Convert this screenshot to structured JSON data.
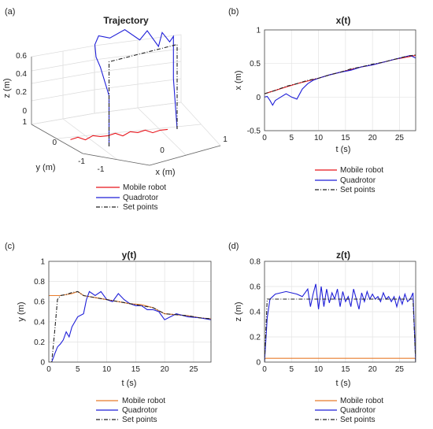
{
  "chart_data": [
    {
      "panel": "(a)",
      "type": "line",
      "title": "Trajectory",
      "xlabel": "x (m)",
      "ylabel": "y (m)",
      "zlabel": "z (m)",
      "xticks": [
        "-1",
        "0",
        "1"
      ],
      "yticks": [
        "-1",
        "0",
        "1"
      ],
      "zticks": [
        "0",
        "0.2",
        "0.4",
        "0.6"
      ],
      "xlim": [
        -1,
        1
      ],
      "ylim": [
        -1,
        1
      ],
      "zlim": [
        0,
        0.7
      ],
      "grid": true,
      "legend_position": "below",
      "series": [
        {
          "name": "Mobile robot",
          "color": "#e8141b",
          "x": [
            -0.7,
            -0.6,
            -0.5,
            -0.4,
            -0.3,
            -0.2,
            -0.1,
            0.0,
            0.1,
            0.2,
            0.3,
            0.4,
            0.5,
            0.6
          ],
          "y": [
            -0.1,
            -0.1,
            -0.1,
            -0.1,
            -0.1,
            -0.1,
            -0.1,
            -0.1,
            -0.1,
            -0.1,
            -0.1,
            -0.1,
            -0.1,
            -0.1
          ],
          "z": [
            0.04,
            0.05,
            0.03,
            0.05,
            0.04,
            0.04,
            0.05,
            0.03,
            0.05,
            0.04,
            0.05,
            0.03,
            0.04,
            0.04
          ]
        },
        {
          "name": "Quadrotor",
          "color": "#1f1fd8",
          "x": [
            -0.1,
            -0.1,
            -0.3,
            -0.4,
            -0.5,
            -0.45,
            -0.3,
            -0.1,
            0.1,
            0.2,
            0.35,
            0.4,
            0.5,
            0.55,
            0.55,
            0.6
          ],
          "y": [
            -0.3,
            -0.3,
            -0.1,
            0.0,
            0.2,
            0.2,
            0.2,
            0.2,
            0.2,
            0.2,
            0.2,
            0.2,
            0.2,
            0.2,
            0.2,
            0.2
          ],
          "z": [
            0.0,
            0.3,
            0.45,
            0.5,
            0.55,
            0.6,
            0.58,
            0.62,
            0.55,
            0.6,
            0.5,
            0.58,
            0.52,
            0.55,
            0.3,
            0.0
          ]
        },
        {
          "name": "Set points",
          "color": "#222222",
          "x": [
            -0.1,
            -0.1,
            0.6,
            0.6
          ],
          "y": [
            -0.3,
            -0.3,
            0.2,
            0.2
          ],
          "z": [
            0.0,
            0.5,
            0.5,
            0.0
          ]
        }
      ]
    },
    {
      "panel": "(b)",
      "type": "line",
      "title": "x(t)",
      "xlabel": "t (s)",
      "ylabel": "x (m)",
      "xlim": [
        0,
        28
      ],
      "ylim": [
        -0.5,
        1
      ],
      "xticks": [
        0,
        5,
        10,
        15,
        20,
        25
      ],
      "yticks": [
        -0.5,
        0,
        0.5,
        1
      ],
      "ytick_labels": [
        "-0.5",
        "0",
        "0.5",
        "1"
      ],
      "grid": true,
      "legend_position": "below",
      "series": [
        {
          "name": "Mobile robot",
          "color": "#e8141b",
          "x": [
            0,
            2,
            4,
            6,
            8,
            10,
            12,
            14,
            16,
            18,
            20,
            22,
            24,
            26,
            28
          ],
          "y": [
            0.05,
            0.1,
            0.15,
            0.2,
            0.24,
            0.28,
            0.33,
            0.37,
            0.41,
            0.45,
            0.48,
            0.52,
            0.56,
            0.59,
            0.62
          ]
        },
        {
          "name": "Quadrotor",
          "color": "#1f1fd8",
          "x": [
            0,
            0.5,
            1,
            1.5,
            2,
            3,
            4,
            5,
            6,
            7,
            8,
            9,
            10,
            12,
            14,
            16,
            18,
            20,
            22,
            24,
            26,
            27,
            28
          ],
          "y": [
            0.0,
            0.01,
            -0.05,
            -0.12,
            -0.05,
            0.0,
            0.05,
            0.0,
            -0.03,
            0.12,
            0.2,
            0.25,
            0.28,
            0.33,
            0.37,
            0.4,
            0.45,
            0.48,
            0.52,
            0.56,
            0.6,
            0.62,
            0.58
          ]
        },
        {
          "name": "Set points",
          "color": "#222222",
          "x": [
            0,
            2,
            4,
            6,
            8,
            10,
            12,
            14,
            16,
            18,
            20,
            22,
            24,
            26,
            28
          ],
          "y": [
            0.05,
            0.1,
            0.16,
            0.2,
            0.25,
            0.28,
            0.33,
            0.37,
            0.42,
            0.45,
            0.49,
            0.52,
            0.56,
            0.6,
            0.63
          ]
        }
      ]
    },
    {
      "panel": "(c)",
      "type": "line",
      "title": "y(t)",
      "xlabel": "t (s)",
      "ylabel": "y (m)",
      "xlim": [
        0,
        28
      ],
      "ylim": [
        0,
        1
      ],
      "xticks": [
        0,
        5,
        10,
        15,
        20,
        25
      ],
      "yticks": [
        0,
        0.2,
        0.4,
        0.6,
        0.8,
        1
      ],
      "ytick_labels": [
        "0",
        "0.2",
        "0.4",
        "0.6",
        "0.8",
        "1"
      ],
      "grid": true,
      "legend_position": "below",
      "series": [
        {
          "name": "Mobile robot",
          "color": "#e87b2b",
          "x": [
            0,
            2,
            4,
            5,
            6,
            8,
            10,
            12,
            14,
            16,
            18,
            20,
            22,
            24,
            26,
            28
          ],
          "y": [
            0.66,
            0.66,
            0.68,
            0.7,
            0.66,
            0.64,
            0.62,
            0.6,
            0.58,
            0.57,
            0.54,
            0.48,
            0.47,
            0.46,
            0.44,
            0.43
          ]
        },
        {
          "name": "Quadrotor",
          "color": "#1f1fd8",
          "x": [
            0,
            0.5,
            1,
            1.5,
            2,
            2.5,
            3,
            3.5,
            4,
            5,
            6,
            6.5,
            7,
            8,
            9,
            10,
            11,
            12,
            13,
            14,
            15,
            16,
            17,
            18,
            19,
            20,
            22,
            24,
            26,
            28
          ],
          "y": [
            0.0,
            0.0,
            0.08,
            0.15,
            0.18,
            0.22,
            0.3,
            0.25,
            0.35,
            0.45,
            0.48,
            0.62,
            0.7,
            0.66,
            0.7,
            0.62,
            0.6,
            0.68,
            0.62,
            0.58,
            0.56,
            0.56,
            0.52,
            0.52,
            0.5,
            0.42,
            0.48,
            0.45,
            0.44,
            0.42
          ]
        },
        {
          "name": "Set points",
          "color": "#222222",
          "x": [
            0,
            0.5,
            1,
            1.5,
            2,
            3,
            4,
            5,
            6,
            8,
            10,
            12,
            14,
            16,
            18,
            20,
            22,
            24,
            26,
            28
          ],
          "y": [
            0.0,
            0.0,
            0.3,
            0.62,
            0.66,
            0.67,
            0.69,
            0.7,
            0.66,
            0.64,
            0.62,
            0.6,
            0.58,
            0.56,
            0.54,
            0.48,
            0.47,
            0.46,
            0.44,
            0.43
          ]
        }
      ]
    },
    {
      "panel": "(d)",
      "type": "line",
      "title": "z(t)",
      "xlabel": "t (s)",
      "ylabel": "z (m)",
      "xlim": [
        0,
        28
      ],
      "ylim": [
        0,
        0.8
      ],
      "xticks": [
        0,
        5,
        10,
        15,
        20,
        25
      ],
      "yticks": [
        0,
        0.2,
        0.4,
        0.6,
        0.8
      ],
      "ytick_labels": [
        "0",
        "0.2",
        "0.4",
        "0.6",
        "0.8"
      ],
      "grid": true,
      "legend_position": "below",
      "series": [
        {
          "name": "Mobile robot",
          "color": "#e87b2b",
          "x": [
            0,
            0.5,
            28
          ],
          "y": [
            0.03,
            0.03,
            0.03
          ]
        },
        {
          "name": "Quadrotor",
          "color": "#1f1fd8",
          "x": [
            0,
            0.5,
            1,
            1.5,
            2,
            3,
            4,
            5,
            6,
            7,
            8,
            8.5,
            9,
            9.5,
            10,
            10.5,
            11,
            11.5,
            12,
            12.5,
            13,
            13.5,
            14,
            14.5,
            15,
            15.5,
            16,
            16.5,
            17,
            17.5,
            18,
            18.5,
            19,
            19.5,
            20,
            20.5,
            21,
            21.5,
            22,
            22.5,
            23,
            23.5,
            24,
            24.5,
            25,
            25.5,
            26,
            26.5,
            27,
            27.5,
            28
          ],
          "y": [
            0.0,
            0.35,
            0.5,
            0.52,
            0.54,
            0.55,
            0.56,
            0.55,
            0.54,
            0.52,
            0.58,
            0.44,
            0.54,
            0.62,
            0.42,
            0.6,
            0.44,
            0.58,
            0.47,
            0.55,
            0.5,
            0.58,
            0.44,
            0.56,
            0.48,
            0.52,
            0.44,
            0.58,
            0.5,
            0.42,
            0.55,
            0.48,
            0.56,
            0.5,
            0.54,
            0.5,
            0.52,
            0.48,
            0.55,
            0.5,
            0.52,
            0.48,
            0.52,
            0.44,
            0.52,
            0.46,
            0.54,
            0.48,
            0.5,
            0.55,
            0.0
          ]
        },
        {
          "name": "Set points",
          "color": "#222222",
          "x": [
            0,
            0.5,
            1,
            27.5,
            28
          ],
          "y": [
            0.0,
            0.5,
            0.5,
            0.5,
            0.0
          ]
        }
      ]
    }
  ]
}
